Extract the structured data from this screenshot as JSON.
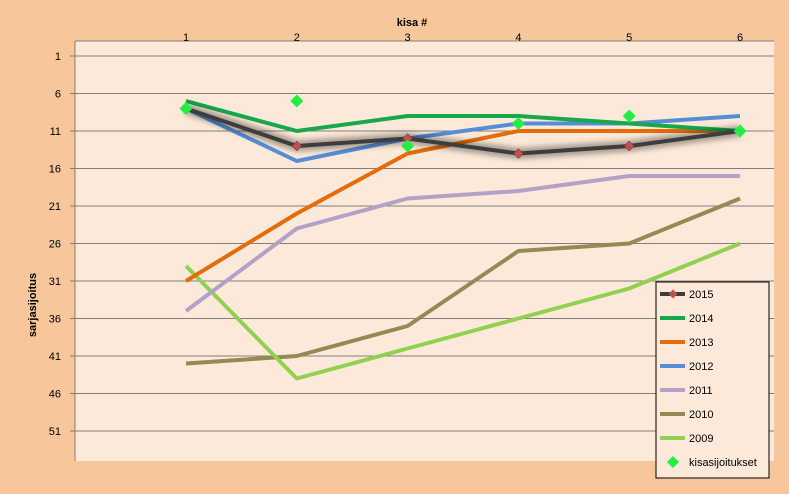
{
  "chart_data": {
    "type": "line",
    "title": "",
    "xlabel": "kisa #",
    "ylabel": "sarjasijoitus",
    "x": [
      1,
      2,
      3,
      4,
      5,
      6
    ],
    "y_ticks": [
      1,
      6,
      11,
      16,
      21,
      26,
      31,
      36,
      41,
      46,
      51
    ],
    "ylim": [
      1,
      55
    ],
    "y_inverted": true,
    "x_axis_position": "top",
    "grid": "horizontal",
    "legend_position": "right",
    "series": [
      {
        "name": "2015",
        "values": [
          8,
          13,
          12,
          14,
          13,
          11
        ],
        "color": "#3d3d3d",
        "marker": "diamond",
        "marker_color": "#c0504d",
        "glow": true
      },
      {
        "name": "2014",
        "values": [
          7,
          11,
          9,
          9,
          10,
          11
        ],
        "color": "#17a84a"
      },
      {
        "name": "2013",
        "values": [
          31,
          22,
          14,
          11,
          11,
          11
        ],
        "color": "#e46c0a"
      },
      {
        "name": "2012",
        "values": [
          8,
          15,
          12,
          10,
          10,
          9
        ],
        "color": "#558ed5"
      },
      {
        "name": "2011",
        "values": [
          35,
          24,
          20,
          19,
          17,
          17
        ],
        "color": "#b3a2c7"
      },
      {
        "name": "2010",
        "values": [
          42,
          41,
          37,
          27,
          26,
          20
        ],
        "color": "#948a54"
      },
      {
        "name": "2009",
        "values": [
          29,
          44,
          40,
          36,
          32,
          26
        ],
        "color": "#92d050"
      },
      {
        "name": "kisasijoitukset",
        "values": [
          8,
          7,
          13,
          10,
          9,
          11
        ],
        "color": "#22ee44",
        "type": "scatter",
        "marker": "diamond"
      }
    ]
  }
}
